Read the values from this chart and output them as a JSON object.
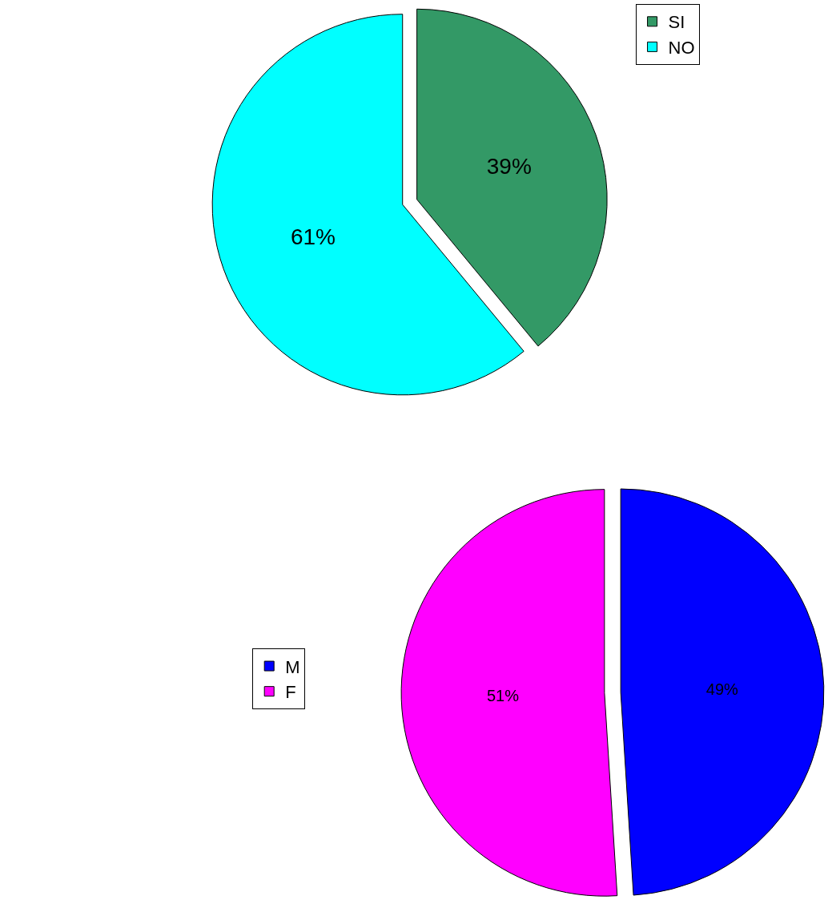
{
  "chart_data": [
    {
      "type": "pie",
      "categories": [
        "SI",
        "NO"
      ],
      "values": [
        39,
        61
      ],
      "colors": [
        "#339966",
        "#00ffff"
      ],
      "value_labels": [
        "39%",
        "61%"
      ],
      "legend": "top right"
    },
    {
      "type": "pie",
      "categories": [
        "M",
        "F"
      ],
      "values": [
        49,
        51
      ],
      "colors": [
        "#0000ff",
        "#ff00ff"
      ],
      "value_labels": [
        "49%",
        "51%"
      ],
      "legend": "left"
    }
  ]
}
